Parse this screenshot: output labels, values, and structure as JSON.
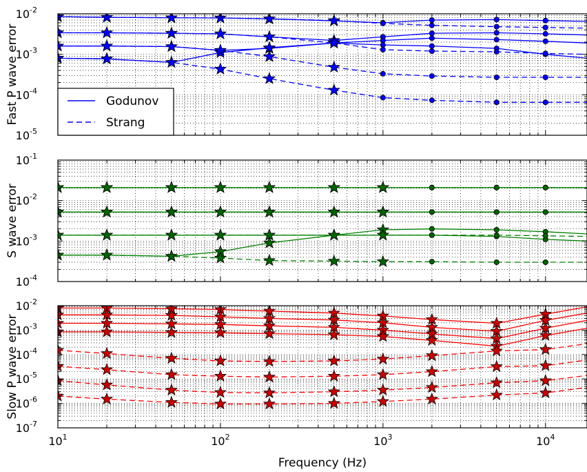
{
  "chart_data": [
    {
      "type": "line",
      "panel": "top",
      "ylabel": "Fast P wave error",
      "xscale": "log",
      "yscale": "log",
      "xlim": [
        10,
        18000
      ],
      "ylim": [
        1e-05,
        0.01
      ],
      "yticks": [
        {
          "base": "10",
          "exp": "-5"
        },
        {
          "base": "10",
          "exp": "-4"
        },
        {
          "base": "10",
          "exp": "-3"
        },
        {
          "base": "10",
          "exp": "-2"
        }
      ],
      "color": "#0000ff",
      "marker_fill": "#0000ff",
      "marker_shift_at": 1000,
      "grid": true,
      "legend": {
        "position": "lower-left",
        "entries": [
          {
            "label": "Godunov",
            "style": "solid"
          },
          {
            "label": "Strang",
            "style": "dashed"
          }
        ]
      },
      "series": [
        {
          "method": "Godunov",
          "x": [
            10,
            20,
            50,
            100,
            200,
            500,
            1000,
            2000,
            5000,
            10000,
            18000
          ],
          "y": [
            0.0085,
            0.0082,
            0.008,
            0.0079,
            0.0075,
            0.0067,
            0.006,
            0.007,
            0.0072,
            0.0068,
            0.0065
          ]
        },
        {
          "method": "Godunov",
          "x": [
            10,
            20,
            50,
            100,
            200,
            500,
            1000,
            2000,
            5000,
            10000,
            18000
          ],
          "y": [
            0.0034,
            0.0034,
            0.0033,
            0.0032,
            0.0027,
            0.0022,
            0.0027,
            0.0033,
            0.0034,
            0.0032,
            0.003
          ]
        },
        {
          "method": "Godunov",
          "x": [
            10,
            20,
            50,
            100,
            200,
            500,
            1000,
            2000,
            5000,
            10000,
            18000
          ],
          "y": [
            0.0016,
            0.0016,
            0.00155,
            0.00125,
            0.0014,
            0.0019,
            0.0022,
            0.0025,
            0.0023,
            0.0021,
            0.0019
          ]
        },
        {
          "method": "Godunov",
          "x": [
            10,
            20,
            50,
            100,
            200,
            500,
            1000,
            2000,
            5000,
            10000,
            18000
          ],
          "y": [
            0.0008,
            0.00077,
            0.00063,
            0.0011,
            0.00145,
            0.0019,
            0.0017,
            0.0016,
            0.0014,
            0.001,
            0.0008
          ]
        },
        {
          "method": "Strang",
          "x": [
            10,
            20,
            50,
            100,
            200,
            500,
            1000,
            2000,
            5000,
            10000,
            18000
          ],
          "y": [
            0.0085,
            0.0082,
            0.008,
            0.0079,
            0.0075,
            0.0068,
            0.0058,
            0.0052,
            0.0048,
            0.0046,
            0.0044
          ]
        },
        {
          "method": "Strang",
          "x": [
            10,
            20,
            50,
            100,
            200,
            500,
            1000,
            2000,
            5000,
            10000,
            18000
          ],
          "y": [
            0.0034,
            0.0034,
            0.0033,
            0.0032,
            0.0027,
            0.0019,
            0.0013,
            0.0012,
            0.00115,
            0.00105,
            0.001
          ]
        },
        {
          "method": "Strang",
          "x": [
            10,
            20,
            50,
            100,
            200,
            500,
            1000,
            2000,
            5000,
            10000,
            18000
          ],
          "y": [
            0.0016,
            0.0016,
            0.00155,
            0.00125,
            0.00088,
            0.00048,
            0.00033,
            0.00029,
            0.00027,
            0.00027,
            0.00027
          ]
        },
        {
          "method": "Strang",
          "x": [
            10,
            20,
            50,
            100,
            200,
            500,
            1000,
            2000,
            5000,
            10000,
            18000
          ],
          "y": [
            0.0008,
            0.00077,
            0.00063,
            0.00043,
            0.00025,
            0.00013,
            8.5e-05,
            7.3e-05,
            6.5e-05,
            6.5e-05,
            6.5e-05
          ]
        }
      ]
    },
    {
      "type": "line",
      "panel": "middle",
      "ylabel": "S wave error",
      "xscale": "log",
      "yscale": "log",
      "xlim": [
        10,
        18000
      ],
      "ylim": [
        0.0001,
        0.1
      ],
      "yticks": [
        {
          "base": "10",
          "exp": "-4"
        },
        {
          "base": "10",
          "exp": "-3"
        },
        {
          "base": "10",
          "exp": "-2"
        },
        {
          "base": "10",
          "exp": "-1"
        }
      ],
      "color": "#008000",
      "marker_fill": "#006400",
      "marker_shift_at": 2000,
      "grid": true,
      "series": [
        {
          "method": "Godunov",
          "x": [
            10,
            20,
            50,
            100,
            200,
            500,
            1000,
            2000,
            5000,
            10000,
            18000
          ],
          "y": [
            0.021,
            0.021,
            0.021,
            0.021,
            0.021,
            0.021,
            0.021,
            0.021,
            0.021,
            0.021,
            0.021
          ]
        },
        {
          "method": "Godunov",
          "x": [
            10,
            20,
            50,
            100,
            200,
            500,
            1000,
            2000,
            5000,
            10000,
            18000
          ],
          "y": [
            0.0052,
            0.0052,
            0.0052,
            0.0052,
            0.0052,
            0.0052,
            0.0052,
            0.0052,
            0.0052,
            0.0052,
            0.0052
          ]
        },
        {
          "method": "Godunov",
          "x": [
            10,
            20,
            50,
            100,
            200,
            500,
            1000,
            2000,
            5000,
            10000,
            18000
          ],
          "y": [
            0.0014,
            0.0014,
            0.0014,
            0.0014,
            0.0014,
            0.0014,
            0.0014,
            0.0014,
            0.0013,
            0.0011,
            0.001
          ]
        },
        {
          "method": "Godunov",
          "x": [
            10,
            20,
            50,
            100,
            200,
            500,
            1000,
            2000,
            5000,
            10000,
            18000
          ],
          "y": [
            0.00045,
            0.00045,
            0.00042,
            0.00055,
            0.0009,
            0.0014,
            0.0019,
            0.002,
            0.0019,
            0.0017,
            0.0015
          ]
        },
        {
          "method": "Strang",
          "x": [
            10,
            20,
            50,
            100,
            200,
            500,
            1000,
            2000,
            5000,
            10000,
            18000
          ],
          "y": [
            0.021,
            0.021,
            0.021,
            0.021,
            0.021,
            0.021,
            0.021,
            0.021,
            0.021,
            0.021,
            0.021
          ]
        },
        {
          "method": "Strang",
          "x": [
            10,
            20,
            50,
            100,
            200,
            500,
            1000,
            2000,
            5000,
            10000,
            18000
          ],
          "y": [
            0.0052,
            0.0052,
            0.0052,
            0.0052,
            0.0052,
            0.0052,
            0.0052,
            0.0052,
            0.0052,
            0.0052,
            0.0052
          ]
        },
        {
          "method": "Strang",
          "x": [
            10,
            20,
            50,
            100,
            200,
            500,
            1000,
            2000,
            5000,
            10000,
            18000
          ],
          "y": [
            0.0014,
            0.0014,
            0.0014,
            0.0014,
            0.0014,
            0.0014,
            0.0014,
            0.0014,
            0.0014,
            0.00135,
            0.0013
          ]
        },
        {
          "method": "Strang",
          "x": [
            10,
            20,
            50,
            100,
            200,
            500,
            1000,
            2000,
            5000,
            10000,
            18000
          ],
          "y": [
            0.00045,
            0.00045,
            0.00042,
            0.00038,
            0.00033,
            0.00032,
            0.00031,
            0.00031,
            0.0003,
            0.0003,
            0.0003
          ]
        }
      ]
    },
    {
      "type": "line",
      "panel": "bottom",
      "ylabel": "Slow P wave error",
      "xlabel": "Frequency (Hz)",
      "xscale": "log",
      "yscale": "log",
      "xlim": [
        10,
        18000
      ],
      "ylim": [
        1e-07,
        0.01
      ],
      "yticks": [
        {
          "base": "10",
          "exp": "-7"
        },
        {
          "base": "10",
          "exp": "-6"
        },
        {
          "base": "10",
          "exp": "-5"
        },
        {
          "base": "10",
          "exp": "-4"
        },
        {
          "base": "10",
          "exp": "-3"
        },
        {
          "base": "10",
          "exp": "-2"
        }
      ],
      "xticks": [
        {
          "value": 10,
          "base": "10",
          "exp": "1"
        },
        {
          "value": 100,
          "base": "10",
          "exp": "2"
        },
        {
          "value": 1000,
          "base": "10",
          "exp": "3"
        },
        {
          "value": 10000,
          "base": "10",
          "exp": "4"
        }
      ],
      "color": "#ff0000",
      "marker_fill": "#cc0000",
      "marker_shift_at": 99999999,
      "grid": true,
      "series": [
        {
          "method": "Godunov",
          "x": [
            10,
            20,
            50,
            100,
            200,
            500,
            1000,
            2000,
            5000,
            10000,
            18000
          ],
          "y": [
            0.008,
            0.008,
            0.0075,
            0.007,
            0.006,
            0.005,
            0.0038,
            0.0027,
            0.0019,
            0.0045,
            0.009
          ]
        },
        {
          "method": "Godunov",
          "x": [
            10,
            20,
            50,
            100,
            200,
            500,
            1000,
            2000,
            5000,
            10000,
            18000
          ],
          "y": [
            0.0042,
            0.0042,
            0.004,
            0.0035,
            0.003,
            0.0026,
            0.002,
            0.0013,
            0.0009,
            0.0025,
            0.005
          ]
        },
        {
          "method": "Godunov",
          "x": [
            10,
            20,
            50,
            100,
            200,
            500,
            1000,
            2000,
            5000,
            10000,
            18000
          ],
          "y": [
            0.0019,
            0.0019,
            0.0018,
            0.0017,
            0.0015,
            0.0013,
            0.001,
            0.0007,
            0.00045,
            0.0012,
            0.0025
          ]
        },
        {
          "method": "Godunov",
          "x": [
            10,
            20,
            50,
            100,
            200,
            500,
            1000,
            2000,
            5000,
            10000,
            18000
          ],
          "y": [
            0.00085,
            0.00085,
            0.0008,
            0.00078,
            0.00072,
            0.00065,
            0.00055,
            0.00038,
            0.00022,
            0.0006,
            0.0012
          ]
        },
        {
          "method": "Strang",
          "x": [
            10,
            20,
            50,
            100,
            200,
            500,
            1000,
            2000,
            5000,
            10000,
            18000
          ],
          "y": [
            0.00015,
            0.00011,
            7e-05,
            5.5e-05,
            5.2e-05,
            5.5e-05,
            6.5e-05,
            9e-05,
            0.00014,
            0.00016,
            0.00028
          ]
        },
        {
          "method": "Strang",
          "x": [
            10,
            20,
            50,
            100,
            200,
            500,
            1000,
            2000,
            5000,
            10000,
            18000
          ],
          "y": [
            3.3e-05,
            2.4e-05,
            1.5e-05,
            1.3e-05,
            1.2e-05,
            1.3e-05,
            1.5e-05,
            2e-05,
            3.2e-05,
            3.5e-05,
            6e-05
          ]
        },
        {
          "method": "Strang",
          "x": [
            10,
            20,
            50,
            100,
            200,
            500,
            1000,
            2000,
            5000,
            10000,
            18000
          ],
          "y": [
            8.5e-06,
            5.7e-06,
            3.5e-06,
            2.8e-06,
            2.7e-06,
            3e-06,
            3.5e-06,
            4.5e-06,
            7e-06,
            8.5e-06,
            1.4e-05
          ]
        },
        {
          "method": "Strang",
          "x": [
            10,
            20,
            50,
            100,
            200,
            500,
            1000,
            2000,
            5000,
            10000,
            18000
          ],
          "y": [
            2e-06,
            1.5e-06,
            1.1e-06,
            9.5e-07,
            9.5e-07,
            1e-06,
            1.2e-06,
            1.5e-06,
            2.2e-06,
            2.7e-06,
            4.5e-06
          ]
        }
      ]
    }
  ]
}
